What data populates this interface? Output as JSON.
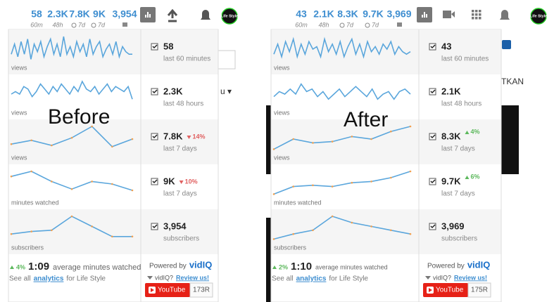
{
  "panels": [
    {
      "overlay": "Before",
      "stats": [
        {
          "value": "58",
          "period": "60m"
        },
        {
          "value": "2.3K",
          "period": "48h"
        },
        {
          "value": "7.8K",
          "period": "7d"
        },
        {
          "value": "9K",
          "period": "7d"
        },
        {
          "value": "3,954"
        }
      ],
      "avatar": "Life Style",
      "background_text": "u ▾",
      "rows": [
        {
          "chart_label": "views",
          "value": "58",
          "label": "last 60 minutes"
        },
        {
          "chart_label": "views",
          "value": "2.3K",
          "label": "last 48 hours"
        },
        {
          "chart_label": "views",
          "value": "7.8K",
          "change": "14%",
          "trend": "down",
          "label": "last 7 days"
        },
        {
          "chart_label": "minutes watched",
          "value": "9K",
          "change": "10%",
          "trend": "down",
          "label": "last 7 days"
        },
        {
          "chart_label": "subscribers",
          "value": "3,954",
          "label": "subscribers"
        }
      ],
      "footer": {
        "change": "4%",
        "trend": "up",
        "duration": "1:09",
        "duration_label": "average minutes watched",
        "see_all": "See all",
        "link": "analytics",
        "for": "for Life Style",
        "powered": "Powered by",
        "brand": "vidIQ",
        "review_q": "vidIQ?",
        "review": "Review us!",
        "youtube": "YouTube",
        "count": "173R"
      }
    },
    {
      "overlay": "After",
      "stats": [
        {
          "value": "43",
          "period": "60m"
        },
        {
          "value": "2.1K",
          "period": "48h"
        },
        {
          "value": "8.3K",
          "period": "7d"
        },
        {
          "value": "9.7K",
          "period": "7d"
        },
        {
          "value": "3,969"
        }
      ],
      "avatar": "Life Style",
      "background_text": "TKAN",
      "rows": [
        {
          "chart_label": "views",
          "value": "43",
          "label": "last 60 minutes"
        },
        {
          "chart_label": "views",
          "value": "2.1K",
          "label": "last 48 hours"
        },
        {
          "chart_label": "views",
          "value": "8.3K",
          "change": "4%",
          "trend": "up",
          "label": "last 7 days"
        },
        {
          "chart_label": "minutes watched",
          "value": "9.7K",
          "change": "6%",
          "trend": "up",
          "label": "last 7 days"
        },
        {
          "chart_label": "subscribers",
          "value": "3,969",
          "label": "subscribers"
        }
      ],
      "footer": {
        "change": "2%",
        "trend": "up",
        "duration": "1:10",
        "duration_label": "average minutes watched",
        "see_all": "See all",
        "link": "analytics",
        "for": "for Life Style",
        "powered": "Powered by",
        "brand": "vidIQ",
        "review_q": "vidIQ?",
        "review": "Review us!",
        "youtube": "YouTube",
        "count": "175R"
      }
    }
  ]
}
